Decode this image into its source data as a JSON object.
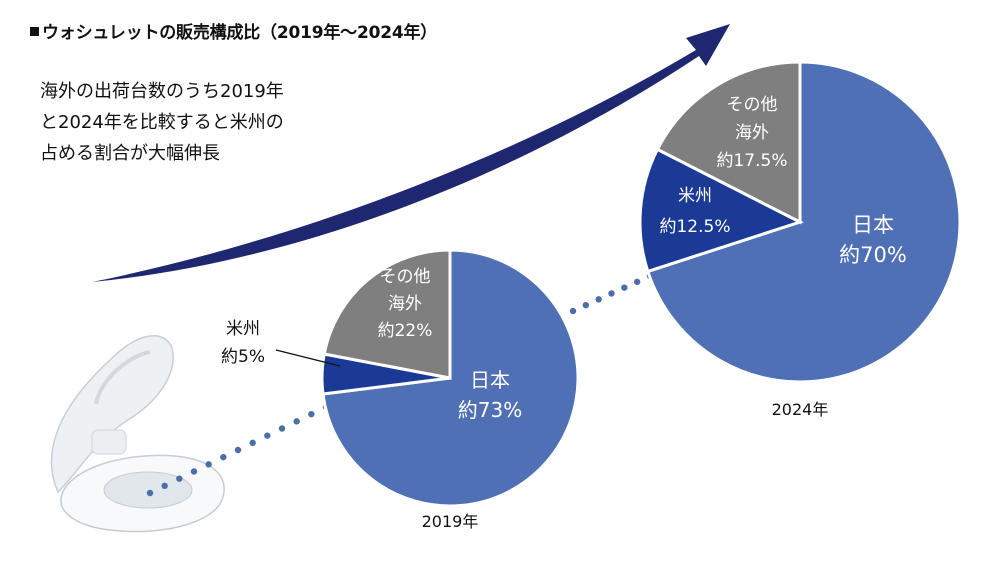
{
  "title": "ウォシュレットの販売構成比（2019年～2024年）",
  "description": [
    "海外の出荷台数のうち2019年",
    "と2024年を比較すると米州の",
    "占める割合が大幅伸長"
  ],
  "colors": {
    "japan": "#4f70b5",
    "americas": "#1a3a96",
    "other": "#7f7f7f",
    "arrow": "#1f2770",
    "dots": "#4a6fa8"
  },
  "chart_data": [
    {
      "type": "pie",
      "year_label": "2019年",
      "slices": [
        {
          "key": "japan",
          "name": "日本",
          "value": 73,
          "label": "約73%"
        },
        {
          "key": "americas",
          "name": "米州",
          "value": 5,
          "label": "約5%"
        },
        {
          "key": "other",
          "name": "その他海外",
          "name_lines": [
            "その他",
            "海外"
          ],
          "value": 22,
          "label": "約22%"
        }
      ]
    },
    {
      "type": "pie",
      "year_label": "2024年",
      "slices": [
        {
          "key": "japan",
          "name": "日本",
          "value": 70,
          "label": "約70%"
        },
        {
          "key": "americas",
          "name": "米州",
          "value": 12.5,
          "label": "約12.5%"
        },
        {
          "key": "other",
          "name": "その他海外",
          "name_lines": [
            "その他",
            "海外"
          ],
          "value": 17.5,
          "label": "約17.5%"
        }
      ]
    }
  ]
}
